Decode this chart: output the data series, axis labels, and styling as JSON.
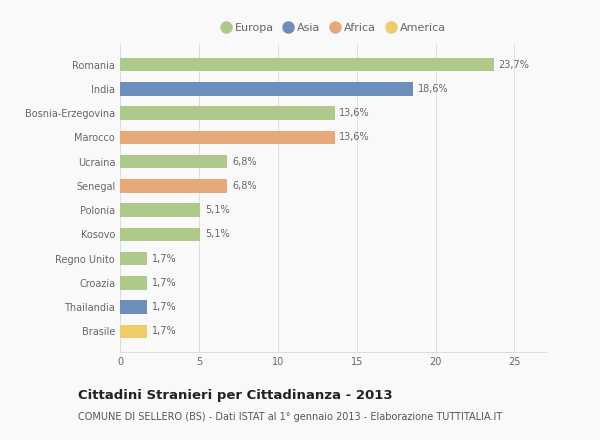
{
  "categories": [
    "Romania",
    "India",
    "Bosnia-Erzegovina",
    "Marocco",
    "Ucraina",
    "Senegal",
    "Polonia",
    "Kosovo",
    "Regno Unito",
    "Croazia",
    "Thailandia",
    "Brasile"
  ],
  "values": [
    23.7,
    18.6,
    13.6,
    13.6,
    6.8,
    6.8,
    5.1,
    5.1,
    1.7,
    1.7,
    1.7,
    1.7
  ],
  "labels": [
    "23,7%",
    "18,6%",
    "13,6%",
    "13,6%",
    "6,8%",
    "6,8%",
    "5,1%",
    "5,1%",
    "1,7%",
    "1,7%",
    "1,7%",
    "1,7%"
  ],
  "colors": [
    "#aec98a",
    "#6b8eba",
    "#aec98a",
    "#e8a97a",
    "#aec98a",
    "#e8a97a",
    "#aec98a",
    "#aec98a",
    "#aec98a",
    "#aec98a",
    "#6b8eba",
    "#f0cb6a"
  ],
  "legend_labels": [
    "Europa",
    "Asia",
    "Africa",
    "America"
  ],
  "legend_colors": [
    "#aec98a",
    "#6b8eba",
    "#e8a97a",
    "#f0cb6a"
  ],
  "title": "Cittadini Stranieri per Cittadinanza - 2013",
  "subtitle": "COMUNE DI SELLERO (BS) - Dati ISTAT al 1° gennaio 2013 - Elaborazione TUTTITALIA.IT",
  "xlim": [
    0,
    27
  ],
  "xticks": [
    0,
    5,
    10,
    15,
    20,
    25
  ],
  "background_color": "#f9f9f9",
  "bar_height": 0.55,
  "title_fontsize": 9.5,
  "subtitle_fontsize": 7,
  "label_fontsize": 7,
  "tick_fontsize": 7,
  "legend_fontsize": 8,
  "ytick_color": "#666666",
  "xtick_color": "#666666",
  "label_color": "#666666",
  "grid_color": "#dddddd"
}
